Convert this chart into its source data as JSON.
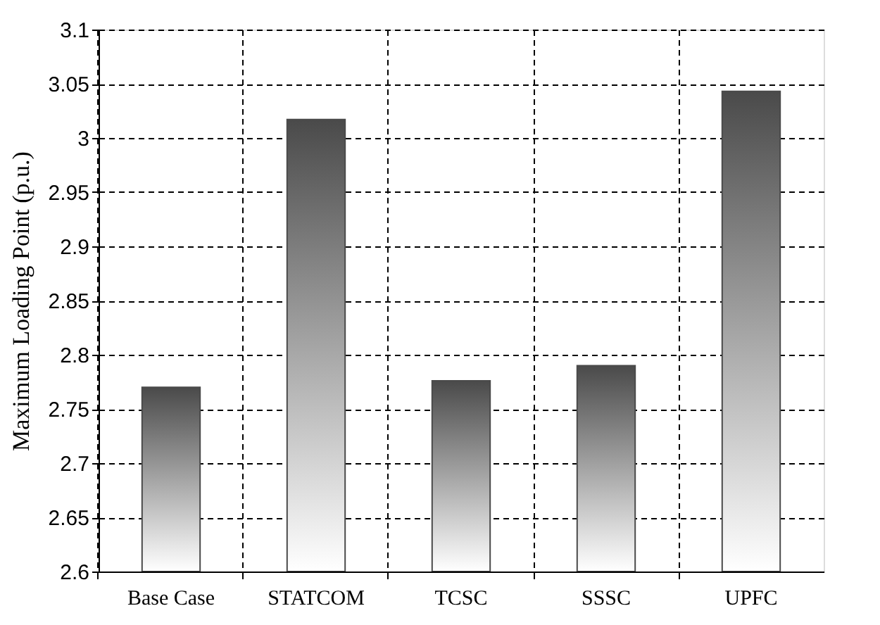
{
  "chart_data": {
    "type": "bar",
    "ylabel": "Maximum Loading Point (p.u.)",
    "categories": [
      "Base Case",
      "STATCOM",
      "TCSC",
      "SSSC",
      "UPFC"
    ],
    "values": [
      2.77,
      3.017,
      2.776,
      2.79,
      3.043
    ],
    "color": "#4a4a4a",
    "ylim": [
      2.6,
      3.1
    ],
    "yticks": [
      2.6,
      2.65,
      2.7,
      2.75,
      2.8,
      2.85,
      2.9,
      2.95,
      3,
      3.05,
      3.1
    ],
    "grid": true
  }
}
